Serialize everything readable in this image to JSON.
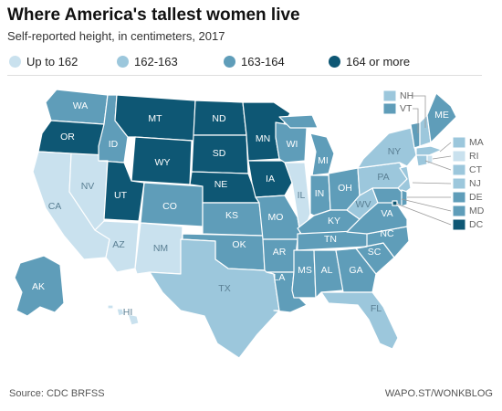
{
  "header": {
    "title": "Where America's tallest women live",
    "subtitle": "Self-reported height, in centimeters, 2017"
  },
  "legend": [
    {
      "label": "Up to 162",
      "color": "#c9e1ee"
    },
    {
      "label": "162-163",
      "color": "#9cc7dc"
    },
    {
      "label": "163-164",
      "color": "#5f9db9"
    },
    {
      "label": "164 or more",
      "color": "#0e5774"
    }
  ],
  "states": {
    "WA": {
      "cat": 2,
      "label": "WA"
    },
    "OR": {
      "cat": 3,
      "label": "OR"
    },
    "CA": {
      "cat": 0,
      "label": "CA"
    },
    "NV": {
      "cat": 0,
      "label": "NV"
    },
    "ID": {
      "cat": 2,
      "label": "ID"
    },
    "MT": {
      "cat": 3,
      "label": "MT"
    },
    "WY": {
      "cat": 3,
      "label": "WY"
    },
    "UT": {
      "cat": 3,
      "label": "UT"
    },
    "AZ": {
      "cat": 0,
      "label": "AZ"
    },
    "CO": {
      "cat": 2,
      "label": "CO"
    },
    "NM": {
      "cat": 0,
      "label": "NM"
    },
    "ND": {
      "cat": 3,
      "label": "ND"
    },
    "SD": {
      "cat": 3,
      "label": "SD"
    },
    "NE": {
      "cat": 3,
      "label": "NE"
    },
    "KS": {
      "cat": 2,
      "label": "KS"
    },
    "OK": {
      "cat": 2,
      "label": "OK"
    },
    "TX": {
      "cat": 1,
      "label": "TX"
    },
    "MN": {
      "cat": 3,
      "label": "MN"
    },
    "IA": {
      "cat": 3,
      "label": "IA"
    },
    "MO": {
      "cat": 2,
      "label": "MO"
    },
    "AR": {
      "cat": 2,
      "label": "AR"
    },
    "LA": {
      "cat": 2,
      "label": "LA"
    },
    "WI": {
      "cat": 2,
      "label": "WI"
    },
    "IL": {
      "cat": 0,
      "label": "IL"
    },
    "MI": {
      "cat": 2,
      "label": "MI"
    },
    "IN": {
      "cat": 2,
      "label": "IN"
    },
    "OH": {
      "cat": 2,
      "label": "OH"
    },
    "KY": {
      "cat": 2,
      "label": "KY"
    },
    "TN": {
      "cat": 2,
      "label": "TN"
    },
    "MS": {
      "cat": 2,
      "label": "MS"
    },
    "AL": {
      "cat": 2,
      "label": "AL"
    },
    "GA": {
      "cat": 2,
      "label": "GA"
    },
    "FL": {
      "cat": 1,
      "label": "FL"
    },
    "SC": {
      "cat": 2,
      "label": "SC"
    },
    "NC": {
      "cat": 2,
      "label": "NC"
    },
    "VA": {
      "cat": 2,
      "label": "VA"
    },
    "WV": {
      "cat": 1,
      "label": "WV"
    },
    "PA": {
      "cat": 1,
      "label": "PA"
    },
    "NY": {
      "cat": 1,
      "label": "NY"
    },
    "ME": {
      "cat": 2,
      "label": "ME"
    },
    "NH": {
      "cat": 1,
      "label": "NH"
    },
    "VT": {
      "cat": 2,
      "label": "VT"
    },
    "MA": {
      "cat": 1,
      "label": "MA"
    },
    "RI": {
      "cat": 0,
      "label": "RI"
    },
    "CT": {
      "cat": 1,
      "label": "CT"
    },
    "NJ": {
      "cat": 1,
      "label": "NJ"
    },
    "DE": {
      "cat": 2,
      "label": "DE"
    },
    "MD": {
      "cat": 2,
      "label": "MD"
    },
    "DC": {
      "cat": 3,
      "label": "DC"
    },
    "AK": {
      "cat": 2,
      "label": "AK"
    },
    "HI": {
      "cat": 0,
      "label": "HI"
    }
  },
  "footer": {
    "source": "Source: CDC BRFSS",
    "credit": "WAPO.ST/WONKBLOG"
  }
}
